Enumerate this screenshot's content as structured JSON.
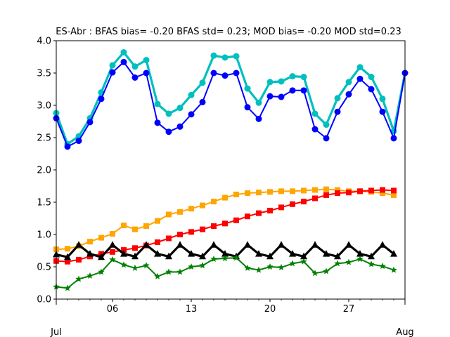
{
  "chart_data": {
    "type": "line",
    "title": "ES-Abr   : BFAS bias= -0.20 BFAS std= 0.23; MOD bias= -0.20 MOD std=0.23",
    "xlabel": "",
    "ylabel": "",
    "ylim": [
      0.0,
      4.0
    ],
    "xlim": [
      "2025-07-01",
      "2025-08-01"
    ],
    "y_ticks": [
      "0.0",
      "0.5",
      "1.0",
      "1.5",
      "2.0",
      "2.5",
      "3.0",
      "3.5",
      "4.0"
    ],
    "x_minor_ticks": [
      {
        "date": "2025-07-06",
        "label": "06"
      },
      {
        "date": "2025-07-13",
        "label": "13"
      },
      {
        "date": "2025-07-20",
        "label": "20"
      },
      {
        "date": "2025-07-27",
        "label": "27"
      }
    ],
    "x_major_ticks": [
      {
        "date": "2025-07-01",
        "label": "Jul"
      },
      {
        "date": "2025-08-01",
        "label": "Aug"
      }
    ],
    "grid": false,
    "series": [
      {
        "color": "#00bfbf",
        "marker": "circle",
        "linewidth": 3.2,
        "x": [
          "2025-07-01",
          "2025-07-02",
          "2025-07-03",
          "2025-07-04",
          "2025-07-05",
          "2025-07-06",
          "2025-07-07",
          "2025-07-08",
          "2025-07-09",
          "2025-07-10",
          "2025-07-11",
          "2025-07-12",
          "2025-07-13",
          "2025-07-14",
          "2025-07-15",
          "2025-07-16",
          "2025-07-17",
          "2025-07-18",
          "2025-07-19",
          "2025-07-20",
          "2025-07-21",
          "2025-07-22",
          "2025-07-23",
          "2025-07-24",
          "2025-07-25",
          "2025-07-26",
          "2025-07-27",
          "2025-07-28",
          "2025-07-29",
          "2025-07-30",
          "2025-07-31",
          "2025-08-01"
        ],
        "values": [
          2.88,
          2.4,
          2.52,
          2.8,
          3.2,
          3.62,
          3.82,
          3.6,
          3.7,
          3.02,
          2.87,
          2.96,
          3.16,
          3.35,
          3.77,
          3.74,
          3.76,
          3.26,
          3.04,
          3.36,
          3.37,
          3.45,
          3.44,
          2.87,
          2.7,
          3.11,
          3.36,
          3.59,
          3.44,
          3.1,
          2.6,
          3.5
        ]
      },
      {
        "color": "#0000ff",
        "marker": "circle",
        "linewidth": 2,
        "x": [
          "2025-07-01",
          "2025-07-02",
          "2025-07-03",
          "2025-07-04",
          "2025-07-05",
          "2025-07-06",
          "2025-07-07",
          "2025-07-08",
          "2025-07-09",
          "2025-07-10",
          "2025-07-11",
          "2025-07-12",
          "2025-07-13",
          "2025-07-14",
          "2025-07-15",
          "2025-07-16",
          "2025-07-17",
          "2025-07-18",
          "2025-07-19",
          "2025-07-20",
          "2025-07-21",
          "2025-07-22",
          "2025-07-23",
          "2025-07-24",
          "2025-07-25",
          "2025-07-26",
          "2025-07-27",
          "2025-07-28",
          "2025-07-29",
          "2025-07-30",
          "2025-07-31",
          "2025-08-01"
        ],
        "values": [
          2.8,
          2.36,
          2.45,
          2.74,
          3.1,
          3.51,
          3.67,
          3.43,
          3.5,
          2.73,
          2.59,
          2.67,
          2.86,
          3.05,
          3.5,
          3.46,
          3.5,
          2.97,
          2.79,
          3.14,
          3.13,
          3.23,
          3.23,
          2.63,
          2.49,
          2.9,
          3.17,
          3.41,
          3.25,
          2.9,
          2.49,
          3.5
        ]
      },
      {
        "color": "#ffa500",
        "marker": "square",
        "linewidth": 2,
        "x": [
          "2025-07-01",
          "2025-07-02",
          "2025-07-03",
          "2025-07-04",
          "2025-07-05",
          "2025-07-06",
          "2025-07-07",
          "2025-07-08",
          "2025-07-09",
          "2025-07-10",
          "2025-07-11",
          "2025-07-12",
          "2025-07-13",
          "2025-07-14",
          "2025-07-15",
          "2025-07-16",
          "2025-07-17",
          "2025-07-18",
          "2025-07-19",
          "2025-07-20",
          "2025-07-21",
          "2025-07-22",
          "2025-07-23",
          "2025-07-24",
          "2025-07-25",
          "2025-07-26",
          "2025-07-27",
          "2025-07-28",
          "2025-07-29",
          "2025-07-30",
          "2025-07-31"
        ],
        "values": [
          0.77,
          0.78,
          0.82,
          0.89,
          0.95,
          1.01,
          1.14,
          1.08,
          1.13,
          1.21,
          1.31,
          1.35,
          1.4,
          1.45,
          1.51,
          1.57,
          1.62,
          1.64,
          1.65,
          1.66,
          1.67,
          1.67,
          1.68,
          1.69,
          1.7,
          1.69,
          1.67,
          1.67,
          1.66,
          1.64,
          1.61
        ]
      },
      {
        "color": "#ff0000",
        "marker": "square",
        "linewidth": 2,
        "x": [
          "2025-07-01",
          "2025-07-02",
          "2025-07-03",
          "2025-07-04",
          "2025-07-05",
          "2025-07-06",
          "2025-07-07",
          "2025-07-08",
          "2025-07-09",
          "2025-07-10",
          "2025-07-11",
          "2025-07-12",
          "2025-07-13",
          "2025-07-14",
          "2025-07-15",
          "2025-07-16",
          "2025-07-17",
          "2025-07-18",
          "2025-07-19",
          "2025-07-20",
          "2025-07-21",
          "2025-07-22",
          "2025-07-23",
          "2025-07-24",
          "2025-07-25",
          "2025-07-26",
          "2025-07-27",
          "2025-07-28",
          "2025-07-29",
          "2025-07-30",
          "2025-07-31"
        ],
        "values": [
          0.59,
          0.58,
          0.61,
          0.66,
          0.7,
          0.73,
          0.76,
          0.79,
          0.83,
          0.88,
          0.94,
          1.0,
          1.04,
          1.08,
          1.13,
          1.17,
          1.22,
          1.28,
          1.33,
          1.37,
          1.42,
          1.47,
          1.51,
          1.56,
          1.61,
          1.64,
          1.65,
          1.67,
          1.68,
          1.69,
          1.68
        ]
      },
      {
        "color": "#000000",
        "marker": "triangle",
        "linewidth": 3.2,
        "x": [
          "2025-07-01",
          "2025-07-02",
          "2025-07-03",
          "2025-07-04",
          "2025-07-05",
          "2025-07-06",
          "2025-07-07",
          "2025-07-08",
          "2025-07-09",
          "2025-07-10",
          "2025-07-11",
          "2025-07-12",
          "2025-07-13",
          "2025-07-14",
          "2025-07-15",
          "2025-07-16",
          "2025-07-17",
          "2025-07-18",
          "2025-07-19",
          "2025-07-20",
          "2025-07-21",
          "2025-07-22",
          "2025-07-23",
          "2025-07-24",
          "2025-07-25",
          "2025-07-26",
          "2025-07-27",
          "2025-07-28",
          "2025-07-29",
          "2025-07-30",
          "2025-07-31"
        ],
        "values": [
          0.69,
          0.65,
          0.84,
          0.7,
          0.65,
          0.84,
          0.7,
          0.66,
          0.84,
          0.7,
          0.66,
          0.84,
          0.7,
          0.66,
          0.84,
          0.7,
          0.66,
          0.84,
          0.7,
          0.66,
          0.84,
          0.7,
          0.66,
          0.84,
          0.7,
          0.66,
          0.84,
          0.7,
          0.66,
          0.84,
          0.7
        ]
      },
      {
        "color": "#008000",
        "marker": "star",
        "linewidth": 2,
        "x": [
          "2025-07-01",
          "2025-07-02",
          "2025-07-03",
          "2025-07-04",
          "2025-07-05",
          "2025-07-06",
          "2025-07-07",
          "2025-07-08",
          "2025-07-09",
          "2025-07-10",
          "2025-07-11",
          "2025-07-12",
          "2025-07-13",
          "2025-07-14",
          "2025-07-15",
          "2025-07-16",
          "2025-07-17",
          "2025-07-18",
          "2025-07-19",
          "2025-07-20",
          "2025-07-21",
          "2025-07-22",
          "2025-07-23",
          "2025-07-24",
          "2025-07-25",
          "2025-07-26",
          "2025-07-27",
          "2025-07-28",
          "2025-07-29",
          "2025-07-30",
          "2025-07-31"
        ],
        "values": [
          0.19,
          0.17,
          0.31,
          0.36,
          0.42,
          0.61,
          0.53,
          0.48,
          0.52,
          0.35,
          0.42,
          0.42,
          0.5,
          0.52,
          0.62,
          0.63,
          0.64,
          0.48,
          0.45,
          0.5,
          0.49,
          0.55,
          0.58,
          0.4,
          0.43,
          0.55,
          0.57,
          0.62,
          0.54,
          0.51,
          0.45
        ]
      }
    ]
  }
}
